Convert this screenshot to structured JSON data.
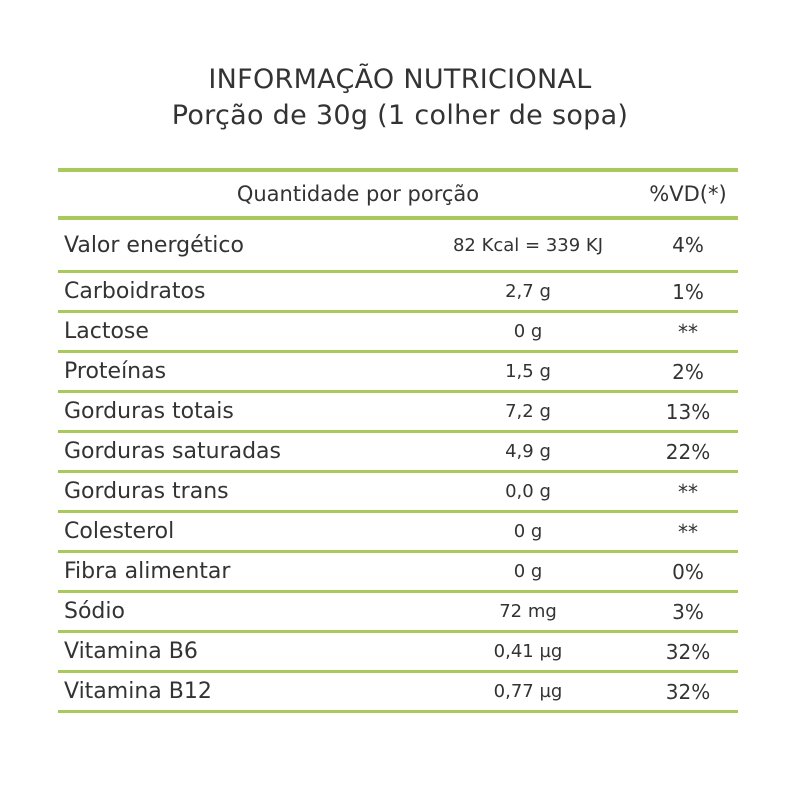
{
  "title": "INFORMAÇÃO NUTRICIONAL",
  "subtitle": "Porção de 30g (1 colher de sopa)",
  "header": {
    "quantity": "Quantidade por porção",
    "vd": "%VD(*)"
  },
  "rows": [
    {
      "name": "Valor energético",
      "amount": "82 Kcal = 339 KJ",
      "vd": "4%"
    },
    {
      "name": "Carboidratos",
      "amount": "2,7 g",
      "vd": "1%"
    },
    {
      "name": "Lactose",
      "amount": "0 g",
      "vd": "**"
    },
    {
      "name": "Proteínas",
      "amount": "1,5 g",
      "vd": "2%"
    },
    {
      "name": "Gorduras totais",
      "amount": "7,2 g",
      "vd": "13%"
    },
    {
      "name": "Gorduras saturadas",
      "amount": "4,9 g",
      "vd": "22%"
    },
    {
      "name": "Gorduras trans",
      "amount": "0,0 g",
      "vd": "**"
    },
    {
      "name": "Colesterol",
      "amount": "0 g",
      "vd": "**"
    },
    {
      "name": "Fibra alimentar",
      "amount": "0 g",
      "vd": "0%"
    },
    {
      "name": "Sódio",
      "amount": "72 mg",
      "vd": "3%"
    },
    {
      "name": "Vitamina B6",
      "amount": "0,41 µg",
      "vd": "32%"
    },
    {
      "name": "Vitamina B12",
      "amount": "0,77 µg",
      "vd": "32%"
    }
  ]
}
